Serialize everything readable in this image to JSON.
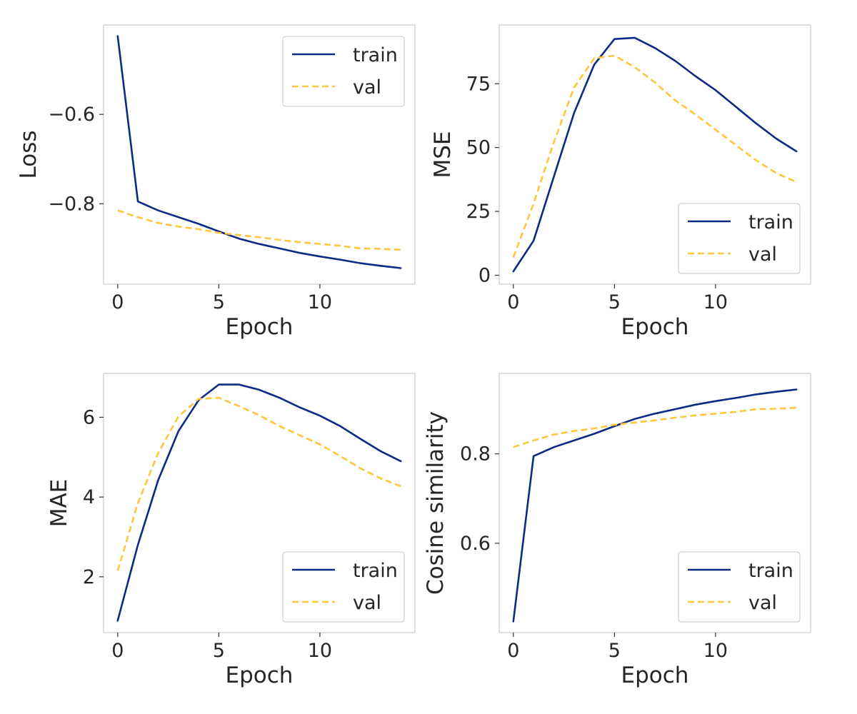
{
  "colors": {
    "train": "#0d2a85",
    "val": "#ffc53d"
  },
  "chart_data": [
    {
      "type": "line",
      "xlabel": "Epoch",
      "ylabel": "Loss",
      "xlim": [
        -0.7,
        14.7
      ],
      "ylim": [
        -0.98,
        -0.4
      ],
      "xticks": [
        0,
        5,
        10
      ],
      "yticks": [
        -0.8,
        -0.6
      ],
      "ytick_labels": [
        "−0.8",
        "−0.6"
      ],
      "grid": false,
      "legend": "upper right",
      "x": [
        0,
        1,
        2,
        3,
        4,
        5,
        6,
        7,
        8,
        9,
        10,
        11,
        12,
        13,
        14
      ],
      "series": [
        {
          "name": "train",
          "style": "solid",
          "values": [
            -0.425,
            -0.795,
            -0.815,
            -0.83,
            -0.845,
            -0.862,
            -0.878,
            -0.89,
            -0.9,
            -0.91,
            -0.918,
            -0.925,
            -0.933,
            -0.939,
            -0.944
          ]
        },
        {
          "name": "val",
          "style": "dashed",
          "values": [
            -0.815,
            -0.83,
            -0.843,
            -0.851,
            -0.857,
            -0.865,
            -0.87,
            -0.875,
            -0.881,
            -0.886,
            -0.89,
            -0.894,
            -0.9,
            -0.901,
            -0.903
          ]
        }
      ]
    },
    {
      "type": "line",
      "xlabel": "Epoch",
      "ylabel": "MSE",
      "xlim": [
        -0.7,
        14.7
      ],
      "ylim": [
        -3.5,
        98
      ],
      "xticks": [
        0,
        5,
        10
      ],
      "yticks": [
        0,
        25,
        50,
        75
      ],
      "ytick_labels": [
        "0",
        "25",
        "50",
        "75"
      ],
      "grid": false,
      "legend": "lower right",
      "x": [
        0,
        1,
        2,
        3,
        4,
        5,
        6,
        7,
        8,
        9,
        10,
        11,
        12,
        13,
        14
      ],
      "series": [
        {
          "name": "train",
          "style": "solid",
          "values": [
            1.5,
            13.5,
            38.5,
            63.5,
            82.5,
            92.5,
            93,
            89,
            84,
            78,
            72.5,
            66,
            59.5,
            53.5,
            48.5
          ]
        },
        {
          "name": "val",
          "style": "dashed",
          "values": [
            7,
            28,
            52,
            73.5,
            85,
            86,
            81.5,
            75.5,
            68.5,
            63,
            57,
            51,
            45,
            40,
            36.5
          ]
        }
      ]
    },
    {
      "type": "line",
      "xlabel": "Epoch",
      "ylabel": "MAE",
      "xlim": [
        -0.7,
        14.7
      ],
      "ylim": [
        0.6,
        7.1
      ],
      "xticks": [
        0,
        5,
        10
      ],
      "yticks": [
        2,
        4,
        6
      ],
      "ytick_labels": [
        "2",
        "4",
        "6"
      ],
      "grid": false,
      "legend": "lower right",
      "x": [
        0,
        1,
        2,
        3,
        4,
        5,
        6,
        7,
        8,
        9,
        10,
        11,
        12,
        13,
        14
      ],
      "series": [
        {
          "name": "train",
          "style": "solid",
          "values": [
            0.9,
            2.8,
            4.42,
            5.65,
            6.43,
            6.82,
            6.82,
            6.69,
            6.49,
            6.25,
            6.04,
            5.78,
            5.46,
            5.15,
            4.9
          ]
        },
        {
          "name": "val",
          "style": "dashed",
          "values": [
            2.15,
            3.85,
            5.1,
            6.02,
            6.46,
            6.49,
            6.28,
            6.05,
            5.78,
            5.55,
            5.32,
            5.03,
            4.72,
            4.47,
            4.27
          ]
        }
      ]
    },
    {
      "type": "line",
      "xlabel": "Epoch",
      "ylabel": "Cosine similarity",
      "xlim": [
        -0.7,
        14.7
      ],
      "ylim": [
        0.4,
        0.98
      ],
      "xticks": [
        0,
        5,
        10
      ],
      "yticks": [
        0.6,
        0.8
      ],
      "ytick_labels": [
        "0.6",
        "0.8"
      ],
      "grid": false,
      "legend": "lower right",
      "x": [
        0,
        1,
        2,
        3,
        4,
        5,
        6,
        7,
        8,
        9,
        10,
        11,
        12,
        13,
        14
      ],
      "series": [
        {
          "name": "train",
          "style": "solid",
          "values": [
            0.425,
            0.795,
            0.815,
            0.83,
            0.845,
            0.862,
            0.878,
            0.89,
            0.9,
            0.91,
            0.918,
            0.925,
            0.933,
            0.939,
            0.944
          ]
        },
        {
          "name": "val",
          "style": "dashed",
          "values": [
            0.815,
            0.83,
            0.843,
            0.851,
            0.857,
            0.865,
            0.87,
            0.875,
            0.881,
            0.886,
            0.89,
            0.894,
            0.9,
            0.901,
            0.903
          ]
        }
      ]
    }
  ]
}
